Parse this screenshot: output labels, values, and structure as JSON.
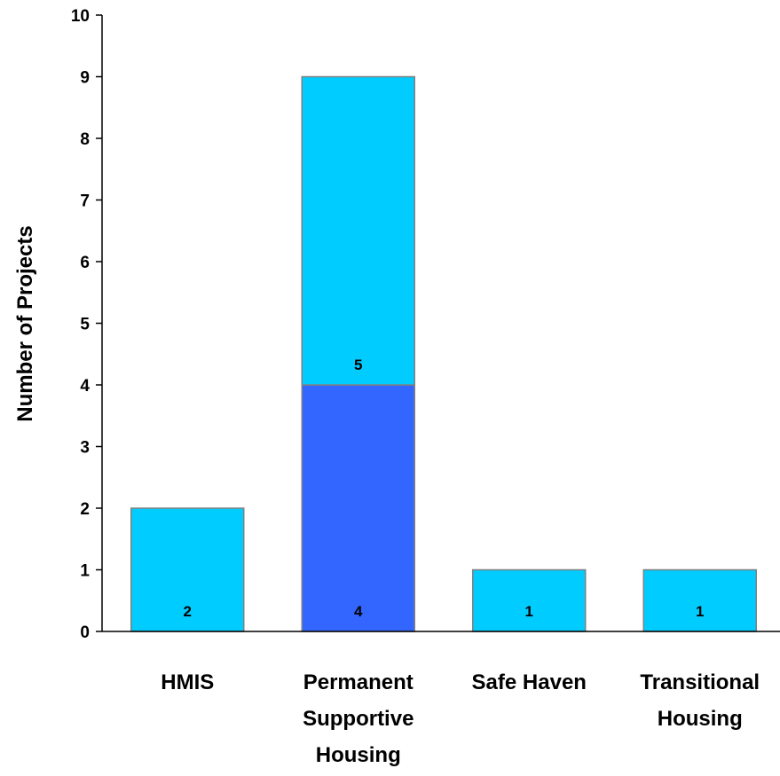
{
  "chart_data": {
    "type": "bar",
    "stacked": true,
    "title": "",
    "xlabel": "",
    "ylabel": "Number of Projects",
    "ylim": [
      0,
      10
    ],
    "yticks": [
      0,
      1,
      2,
      3,
      4,
      5,
      6,
      7,
      8,
      9,
      10
    ],
    "grid": false,
    "legend": "none",
    "categories": [
      [
        "HMIS"
      ],
      [
        "Permanent",
        "Supportive",
        "Housing"
      ],
      [
        "Safe Haven"
      ],
      [
        "Transitional",
        "Housing"
      ]
    ],
    "series": [
      {
        "values": [
          0,
          4,
          0,
          0
        ],
        "color": "#3366ff",
        "labels": [
          "",
          "4",
          "",
          ""
        ]
      },
      {
        "values": [
          2,
          5,
          1,
          1
        ],
        "color": "#00ccff",
        "labels": [
          "2",
          "5",
          "1",
          "1"
        ]
      }
    ]
  }
}
